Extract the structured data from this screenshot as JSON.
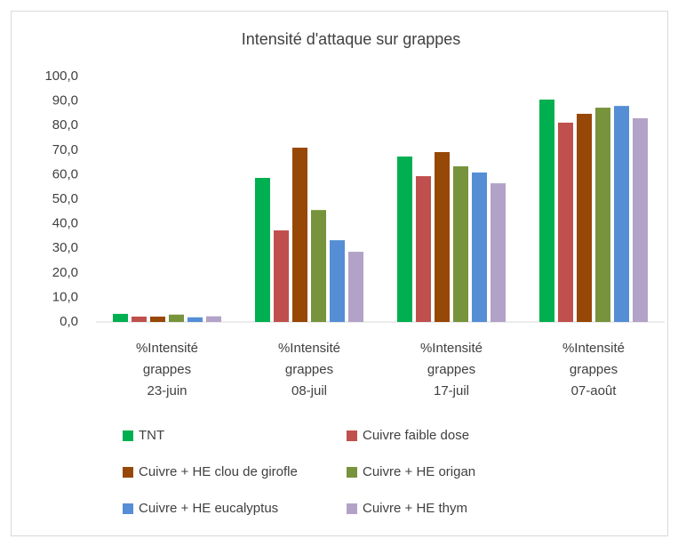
{
  "chart_data": {
    "type": "bar",
    "title": "Intensité d'attaque sur grappes",
    "categories": [
      "%Intensité grappes 23-juin",
      "%Intensité grappes 08-juil",
      "%Intensité grappes 17-juil",
      "%Intensité grappes 07-août"
    ],
    "series": [
      {
        "name": "TNT",
        "color": "#00b050",
        "values": [
          3.3,
          58.7,
          67.4,
          90.6
        ]
      },
      {
        "name": "Cuivre faible dose",
        "color": "#c0504d",
        "values": [
          2.2,
          37.3,
          59.4,
          81.2
        ]
      },
      {
        "name": "Cuivre + HE clou de girofle",
        "color": "#974706",
        "values": [
          2.2,
          71.0,
          69.2,
          84.8
        ]
      },
      {
        "name": "Cuivre + HE origan",
        "color": "#77933c",
        "values": [
          3.0,
          45.6,
          63.4,
          87.3
        ]
      },
      {
        "name": "Cuivre + HE eucalyptus",
        "color": "#558ed5",
        "values": [
          1.9,
          33.3,
          60.9,
          88.0
        ]
      },
      {
        "name": "Cuivre + HE thym",
        "color": "#b3a2c7",
        "values": [
          2.3,
          28.6,
          56.5,
          83.0
        ]
      }
    ],
    "ylim": [
      0,
      100
    ],
    "yticks": [
      {
        "value": 0,
        "label": "0,0"
      },
      {
        "value": 10,
        "label": "10,0"
      },
      {
        "value": 20,
        "label": "20,0"
      },
      {
        "value": 30,
        "label": "30,0"
      },
      {
        "value": 40,
        "label": "40,0"
      },
      {
        "value": 50,
        "label": "50,0"
      },
      {
        "value": 60,
        "label": "60,0"
      },
      {
        "value": 70,
        "label": "70,0"
      },
      {
        "value": 80,
        "label": "80,0"
      },
      {
        "value": 90,
        "label": "90,0"
      },
      {
        "value": 100,
        "label": "100,0"
      }
    ],
    "legend": "bottom"
  }
}
